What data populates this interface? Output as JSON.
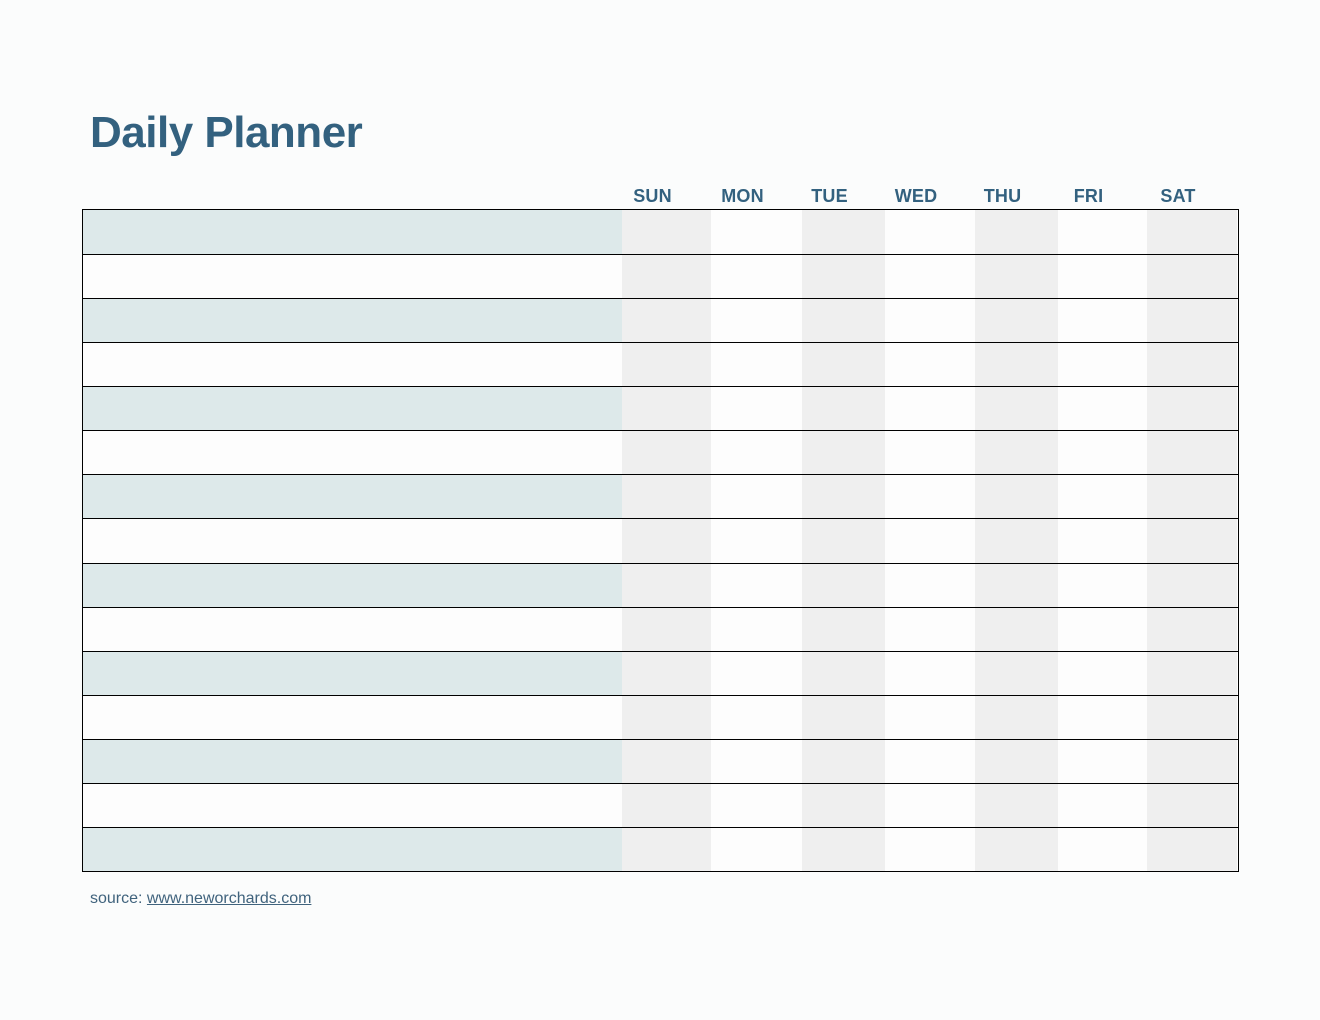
{
  "page": {
    "title": "Daily Planner",
    "background": "#FBFCFC"
  },
  "planner": {
    "day_headers": [
      "SUN",
      "MON",
      "TUE",
      "WED",
      "THU",
      "FRI",
      "SAT"
    ],
    "row_count": 15,
    "row_shading_pattern": [
      "teal",
      "white"
    ],
    "column_shading": [
      "gray",
      "white",
      "gray",
      "white",
      "gray",
      "white",
      "gray"
    ],
    "cells_empty": true
  },
  "footer": {
    "source_label": "source:",
    "link_text": "www.neworchards.com"
  },
  "colors": {
    "accent": "#33617F",
    "teal_row": "#DDE9EA",
    "gray_column": "#EFEFEF",
    "cell_white": "#FDFDFD",
    "table_border": "#000000",
    "link": "#40637D",
    "page_background": "#FBFCFC"
  }
}
